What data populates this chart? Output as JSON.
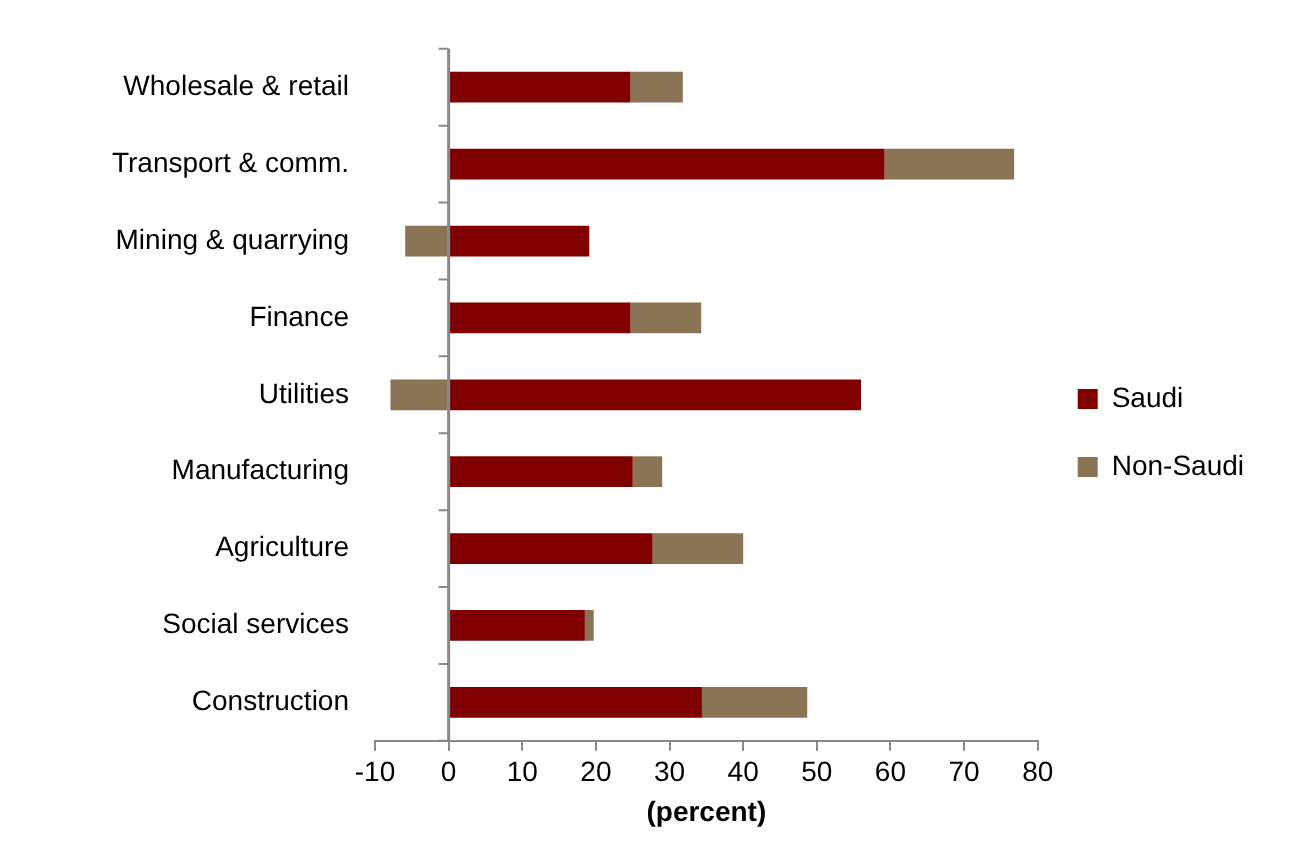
{
  "chart_data": {
    "type": "bar",
    "orientation": "horizontal",
    "stacked": true,
    "xlabel": "(percent)",
    "categories": [
      "Wholesale & retail",
      "Transport & comm.",
      "Mining & quarrying",
      "Finance",
      "Utilities",
      "Manufacturing",
      "Agriculture",
      "Social services",
      "Construction"
    ],
    "series": [
      {
        "name": "Saudi",
        "color": "#800000",
        "values": [
          24.7,
          59.2,
          19.1,
          24.7,
          56.0,
          25.0,
          27.7,
          18.5,
          34.4
        ]
      },
      {
        "name": "Non-Saudi",
        "color": "#8b7355",
        "values": [
          7.1,
          17.6,
          -5.9,
          9.6,
          -7.9,
          4.0,
          12.3,
          1.2,
          14.3
        ]
      }
    ],
    "xlim": [
      -10,
      80
    ],
    "xticks": [
      -10,
      0,
      10,
      20,
      30,
      40,
      50,
      60,
      70,
      80
    ],
    "legend": "right"
  }
}
